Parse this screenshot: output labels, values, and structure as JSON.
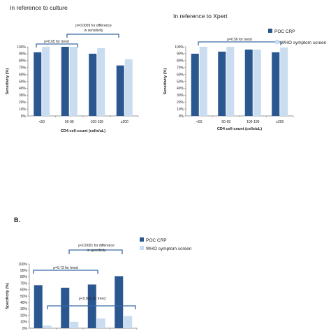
{
  "chart_data": [
    {
      "type": "bar",
      "title": "In reference to culture",
      "xlabel": "CD4 cell-count (cells/uL)",
      "ylabel": "Sensitivity (%)",
      "categories": [
        "<50",
        "50-99",
        "100-199",
        "≥200"
      ],
      "ylim": [
        0,
        100
      ],
      "yticks": [
        "0%",
        "10%",
        "20%",
        "30%",
        "40%",
        "50%",
        "60%",
        "70%",
        "80%",
        "90%",
        "100%"
      ],
      "series": [
        {
          "name": "POC CRP",
          "values": [
            92,
            100,
            90,
            73
          ]
        },
        {
          "name": "WHO symptom screen",
          "values": [
            100,
            100,
            98,
            82
          ]
        }
      ],
      "annotations": [
        "p=0.65 for trend",
        "p=0.0009 for difference",
        "in sensitivity"
      ]
    },
    {
      "type": "bar",
      "title": "In reference to Xpert",
      "xlabel": "CD4 cell-count (cells/uL)",
      "ylabel": "Sensitivity (%)",
      "categories": [
        "<50",
        "50-99",
        "100-199",
        "≥200"
      ],
      "ylim": [
        0,
        100
      ],
      "yticks": [
        "0%",
        "10%",
        "20%",
        "30%",
        "40%",
        "50%",
        "60%",
        "70%",
        "80%",
        "90%",
        "100%"
      ],
      "series": [
        {
          "name": "POC CRP",
          "values": [
            90,
            93,
            96,
            92
          ]
        },
        {
          "name": "WHO symptom screen",
          "values": [
            100,
            100,
            96,
            99
          ]
        }
      ],
      "annotations": [
        "p=0.56 for trend"
      ],
      "legend": "top-right"
    },
    {
      "type": "bar",
      "title": "",
      "xlabel": "",
      "ylabel": "Specificity (%)",
      "categories": [
        "<50",
        "50-99",
        "100-199",
        "≥200"
      ],
      "ylim": [
        0,
        100
      ],
      "yticks": [
        "0%",
        "10%",
        "20%",
        "30%",
        "40%",
        "50%",
        "60%",
        "70%",
        "80%",
        "90%",
        "100%"
      ],
      "series": [
        {
          "name": "POC CRP",
          "values": [
            67,
            63,
            68,
            81
          ]
        },
        {
          "name": "WHO symptom screen",
          "values": [
            4,
            10,
            15,
            19
          ]
        }
      ],
      "annotations": [
        "p<0.0001 for difference",
        "in specificity",
        "p=0.73 for trend",
        "p<0.001 for trend"
      ],
      "legend": "top-right"
    }
  ],
  "section_label": "B.",
  "colors": {
    "poc_crp": "#2b5791",
    "who": "#c9dcf0",
    "bracket": "#3a6aa3"
  }
}
